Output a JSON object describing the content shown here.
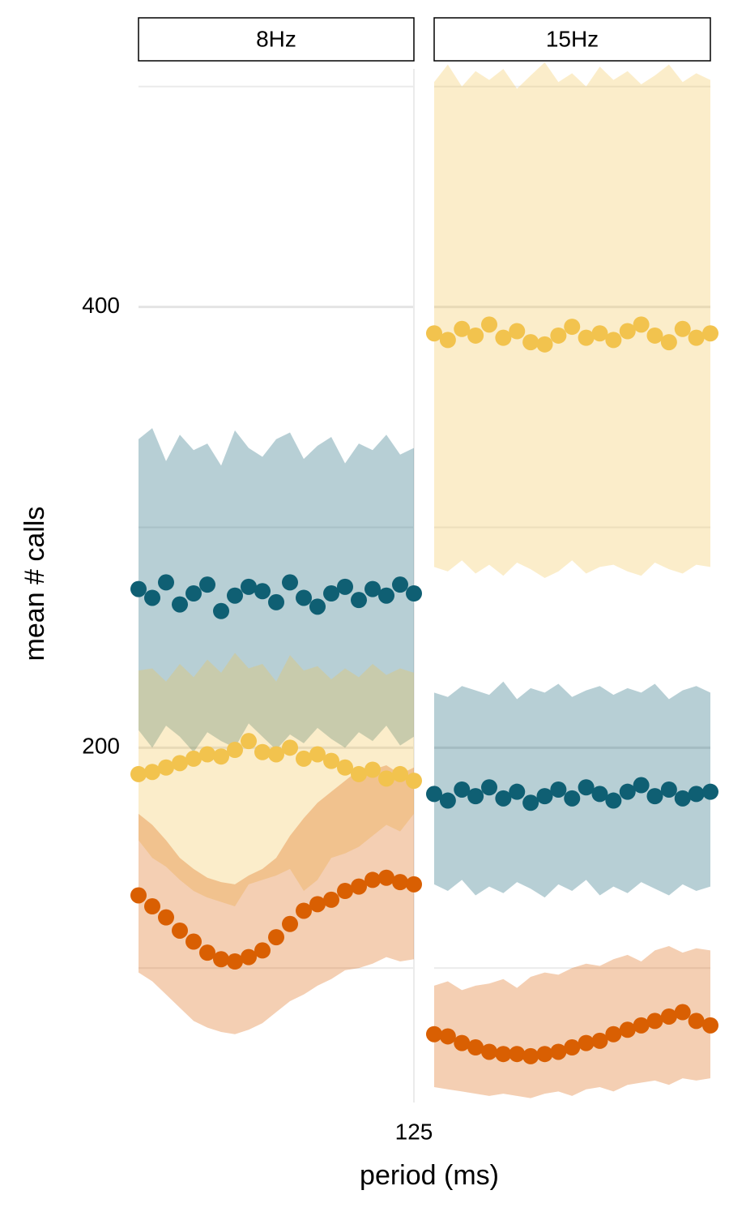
{
  "y_axis": {
    "label": "mean # calls",
    "ylim": [
      39,
      508
    ],
    "yticks": [
      200,
      400
    ],
    "minor_yticks": [
      100,
      300,
      500
    ],
    "grid": true
  },
  "xlabel": "period (ms)",
  "chart_data": [
    {
      "type": "scatter",
      "title": "8Hz",
      "xlim": [
        0,
        125
      ],
      "xticks": [
        125
      ],
      "x": [
        0,
        6.25,
        12.5,
        18.75,
        25,
        31.25,
        37.5,
        43.75,
        50,
        56.25,
        62.5,
        68.75,
        75,
        81.25,
        87.5,
        93.75,
        100,
        106.25,
        112.5,
        118.75,
        125
      ],
      "series": [
        {
          "color": "#0f5f73",
          "values": [
            272,
            268,
            275,
            265,
            270,
            274,
            262,
            269,
            273,
            271,
            266,
            275,
            268,
            264,
            270,
            273,
            267,
            272,
            269,
            274,
            270
          ],
          "lower": [
            208,
            200,
            210,
            205,
            198,
            207,
            203,
            200,
            211,
            205,
            199,
            206,
            202,
            209,
            204,
            200,
            207,
            203,
            210,
            201,
            205
          ],
          "upper": [
            340,
            345,
            330,
            342,
            335,
            338,
            328,
            344,
            336,
            332,
            340,
            343,
            331,
            337,
            341,
            329,
            338,
            335,
            342,
            333,
            336
          ]
        },
        {
          "color": "#f2c34e",
          "values": [
            188,
            189,
            191,
            193,
            195,
            197,
            196,
            199,
            203,
            198,
            197,
            200,
            195,
            197,
            194,
            191,
            188,
            190,
            186,
            188,
            185
          ],
          "lower": [
            158,
            150,
            146,
            140,
            135,
            132,
            130,
            128,
            138,
            140,
            142,
            145,
            135,
            140,
            150,
            152,
            155,
            160,
            165,
            162,
            170
          ],
          "upper": [
            235,
            236,
            230,
            238,
            232,
            240,
            234,
            243,
            236,
            238,
            230,
            242,
            235,
            237,
            231,
            236,
            232,
            238,
            233,
            236,
            234
          ]
        },
        {
          "color": "#d95f02",
          "values": [
            133,
            128,
            123,
            117,
            112,
            107,
            104,
            103,
            105,
            108,
            114,
            120,
            126,
            129,
            131,
            135,
            137,
            140,
            141,
            139,
            138
          ],
          "lower": [
            98,
            94,
            88,
            82,
            76,
            73,
            71,
            70,
            72,
            75,
            80,
            85,
            88,
            92,
            95,
            99,
            100,
            102,
            105,
            103,
            104
          ],
          "upper": [
            170,
            165,
            158,
            150,
            145,
            141,
            139,
            138,
            142,
            145,
            150,
            160,
            168,
            175,
            180,
            185,
            190,
            190,
            192,
            188,
            191
          ]
        }
      ]
    },
    {
      "type": "scatter",
      "title": "15Hz",
      "xlim": [
        0,
        66.7
      ],
      "xticks": [],
      "x": [
        0,
        3.3,
        6.7,
        10,
        13.3,
        16.7,
        20,
        23.3,
        26.7,
        30,
        33.3,
        36.7,
        40,
        43.3,
        46.7,
        50,
        53.3,
        56.7,
        60,
        63.3,
        66.7
      ],
      "series": [
        {
          "color": "#f2c34e",
          "values": [
            388,
            385,
            390,
            387,
            392,
            386,
            389,
            384,
            383,
            387,
            391,
            386,
            388,
            385,
            389,
            392,
            387,
            384,
            390,
            386,
            388
          ],
          "lower": [
            282,
            280,
            285,
            279,
            283,
            278,
            284,
            281,
            277,
            280,
            285,
            279,
            282,
            283,
            280,
            278,
            284,
            281,
            279,
            283,
            282
          ],
          "upper": [
            502,
            510,
            500,
            507,
            503,
            508,
            499,
            505,
            511,
            502,
            506,
            500,
            509,
            503,
            507,
            501,
            505,
            510,
            502,
            506,
            503
          ]
        },
        {
          "color": "#0f5f73",
          "values": [
            179,
            176,
            181,
            178,
            182,
            177,
            180,
            175,
            178,
            181,
            177,
            182,
            179,
            176,
            180,
            183,
            178,
            181,
            177,
            179,
            180
          ],
          "lower": [
            138,
            135,
            140,
            133,
            137,
            134,
            139,
            136,
            132,
            138,
            135,
            140,
            133,
            137,
            134,
            139,
            136,
            133,
            138,
            135,
            137
          ],
          "upper": [
            225,
            223,
            228,
            226,
            224,
            230,
            222,
            227,
            225,
            229,
            223,
            226,
            228,
            224,
            227,
            225,
            229,
            222,
            226,
            228,
            225
          ]
        },
        {
          "color": "#d95f02",
          "values": [
            70,
            69,
            66,
            64,
            62,
            61,
            61,
            60,
            61,
            62,
            64,
            66,
            67,
            70,
            72,
            74,
            76,
            78,
            80,
            76,
            74
          ],
          "lower": [
            46,
            45,
            44,
            43,
            42,
            43,
            42,
            41,
            43,
            44,
            42,
            45,
            46,
            44,
            47,
            48,
            49,
            47,
            50,
            49,
            50
          ],
          "upper": [
            92,
            94,
            90,
            92,
            93,
            95,
            91,
            96,
            98,
            97,
            100,
            102,
            101,
            104,
            106,
            103,
            108,
            110,
            107,
            109,
            108
          ]
        }
      ]
    }
  ]
}
